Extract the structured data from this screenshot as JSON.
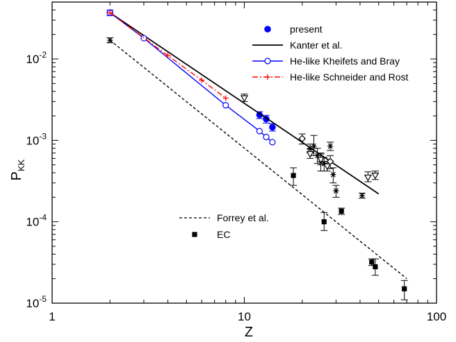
{
  "chart_data": {
    "type": "scatter",
    "xlabel": "Z",
    "ylabel": {
      "main": "P",
      "sub": "KK"
    },
    "xscale": "log",
    "yscale": "log",
    "xlim": [
      1,
      100
    ],
    "ylim": [
      1e-05,
      0.05
    ],
    "x_ticks": [
      {
        "value": 1,
        "label": "1"
      },
      {
        "value": 10,
        "label": "10"
      },
      {
        "value": 100,
        "label": "100"
      }
    ],
    "y_ticks": [
      {
        "value": 1e-05,
        "base": "10",
        "exp": "-5"
      },
      {
        "value": 0.0001,
        "base": "10",
        "exp": "-4"
      },
      {
        "value": 0.001,
        "base": "10",
        "exp": "-3"
      },
      {
        "value": 0.01,
        "base": "10",
        "exp": "-2"
      }
    ],
    "grid": false,
    "legend_top": {
      "position": "top-right",
      "entries": [
        {
          "name": "present",
          "style": "filled-circle",
          "color": "#0000ff"
        },
        {
          "name": "Kanter et al.",
          "style": "solid-line",
          "color": "#000000"
        },
        {
          "name": "He-like Kheifets and Bray",
          "style": "line-open-circle",
          "color": "#0000ff"
        },
        {
          "name": "He-like Schneider and Rost",
          "style": "dashdot-plus",
          "color": "#ff0000"
        }
      ]
    },
    "legend_bottom": {
      "position": "bottom-center",
      "entries": [
        {
          "name": "Forrey et al.",
          "style": "dashed-line",
          "color": "#000000"
        },
        {
          "name": "EC",
          "style": "filled-square",
          "color": "#000000"
        }
      ]
    },
    "series": [
      {
        "name": "present",
        "kind": "points",
        "marker": "filled-circle",
        "color": "#0000ff",
        "points": [
          {
            "x": 2,
            "y": 0.037,
            "lo": 0.034,
            "hi": 0.04
          },
          {
            "x": 12,
            "y": 0.00205,
            "lo": 0.00185,
            "hi": 0.00225
          },
          {
            "x": 13,
            "y": 0.00183,
            "lo": 0.00163,
            "hi": 0.00203
          },
          {
            "x": 14,
            "y": 0.00145,
            "lo": 0.0013,
            "hi": 0.0016
          }
        ]
      },
      {
        "name": "Kanter et al.",
        "kind": "line",
        "dash": "solid",
        "color": "#000000",
        "points": [
          {
            "x": 2,
            "y": 0.037
          },
          {
            "x": 50,
            "y": 0.00022
          }
        ]
      },
      {
        "name": "He-like Kheifets and Bray",
        "kind": "line-markers",
        "marker": "open-circle",
        "color": "#0000ff",
        "points": [
          {
            "x": 2,
            "y": 0.037
          },
          {
            "x": 3,
            "y": 0.018
          },
          {
            "x": 8,
            "y": 0.0027
          },
          {
            "x": 12,
            "y": 0.0013
          },
          {
            "x": 13,
            "y": 0.0011
          },
          {
            "x": 14,
            "y": 0.00095
          }
        ]
      },
      {
        "name": "He-like Schneider and Rost",
        "kind": "line-markers",
        "marker": "plus",
        "dash": "dashdot",
        "color": "#ff0000",
        "points": [
          {
            "x": 2,
            "y": 0.037
          },
          {
            "x": 4,
            "y": 0.011
          },
          {
            "x": 6,
            "y": 0.0055
          },
          {
            "x": 8,
            "y": 0.0033
          }
        ]
      },
      {
        "name": "Forrey et al.",
        "kind": "line",
        "dash": "dashed",
        "color": "#000000",
        "points": [
          {
            "x": 2,
            "y": 0.017
          },
          {
            "x": 70,
            "y": 2e-05
          }
        ]
      },
      {
        "name": "EC",
        "kind": "points",
        "marker": "filled-square",
        "color": "#000000",
        "points": [
          {
            "x": 18,
            "y": 0.00037,
            "lo": 0.00028,
            "hi": 0.00046
          },
          {
            "x": 26,
            "y": 0.0001,
            "lo": 7.8e-05,
            "hi": 0.00013
          },
          {
            "x": 32,
            "y": 0.000135,
            "lo": 0.000123,
            "hi": 0.000147
          },
          {
            "x": 46,
            "y": 3.2e-05,
            "lo": 2.9e-05,
            "hi": 3.5e-05
          },
          {
            "x": 48,
            "y": 2.8e-05,
            "lo": 2.2e-05,
            "hi": 3.5e-05
          },
          {
            "x": 68,
            "y": 1.5e-05,
            "lo": 1.1e-05,
            "hi": 1.9e-05
          }
        ]
      },
      {
        "name": "",
        "kind": "points",
        "marker": "asterisk",
        "color": "#000000",
        "points": [
          {
            "x": 2,
            "y": 0.017,
            "lo": 0.0158,
            "hi": 0.0182
          },
          {
            "x": 22,
            "y": 0.0008,
            "lo": 0.0007,
            "hi": 0.0009
          },
          {
            "x": 23,
            "y": 0.00085,
            "lo": 0.00065,
            "hi": 0.00115
          },
          {
            "x": 24,
            "y": 0.00065,
            "lo": 0.00052,
            "hi": 0.0008
          },
          {
            "x": 25,
            "y": 0.00055,
            "lo": 0.00042,
            "hi": 0.0007
          },
          {
            "x": 26,
            "y": 0.00052,
            "lo": 0.00042,
            "hi": 0.00062
          },
          {
            "x": 28,
            "y": 0.00085,
            "lo": 0.00075,
            "hi": 0.00095
          },
          {
            "x": 29,
            "y": 0.00038,
            "lo": 0.0003,
            "hi": 0.00046
          },
          {
            "x": 30,
            "y": 0.00024,
            "lo": 0.0002,
            "hi": 0.00028
          },
          {
            "x": 41,
            "y": 0.00021,
            "lo": 0.000195,
            "hi": 0.000225
          }
        ]
      },
      {
        "name": "",
        "kind": "points",
        "marker": "open-triangle-down",
        "color": "#000000",
        "points": [
          {
            "x": 10,
            "y": 0.0033,
            "lo": 0.003,
            "hi": 0.0037
          },
          {
            "x": 22,
            "y": 0.00068,
            "lo": 0.0006,
            "hi": 0.00078
          },
          {
            "x": 25,
            "y": 0.00058,
            "lo": 0.0005,
            "hi": 0.00068
          },
          {
            "x": 27,
            "y": 0.00048,
            "lo": 0.00042,
            "hi": 0.00055
          },
          {
            "x": 44,
            "y": 0.00035,
            "lo": 0.00031,
            "hi": 0.00041
          },
          {
            "x": 48,
            "y": 0.00037,
            "lo": 0.00033,
            "hi": 0.00042
          }
        ]
      },
      {
        "name": "",
        "kind": "points",
        "marker": "open-diamond",
        "color": "#000000",
        "points": [
          {
            "x": 20,
            "y": 0.00105,
            "lo": 0.0009,
            "hi": 0.0012
          },
          {
            "x": 28,
            "y": 0.00055,
            "lo": 0.00045,
            "hi": 0.00065
          }
        ]
      }
    ]
  }
}
